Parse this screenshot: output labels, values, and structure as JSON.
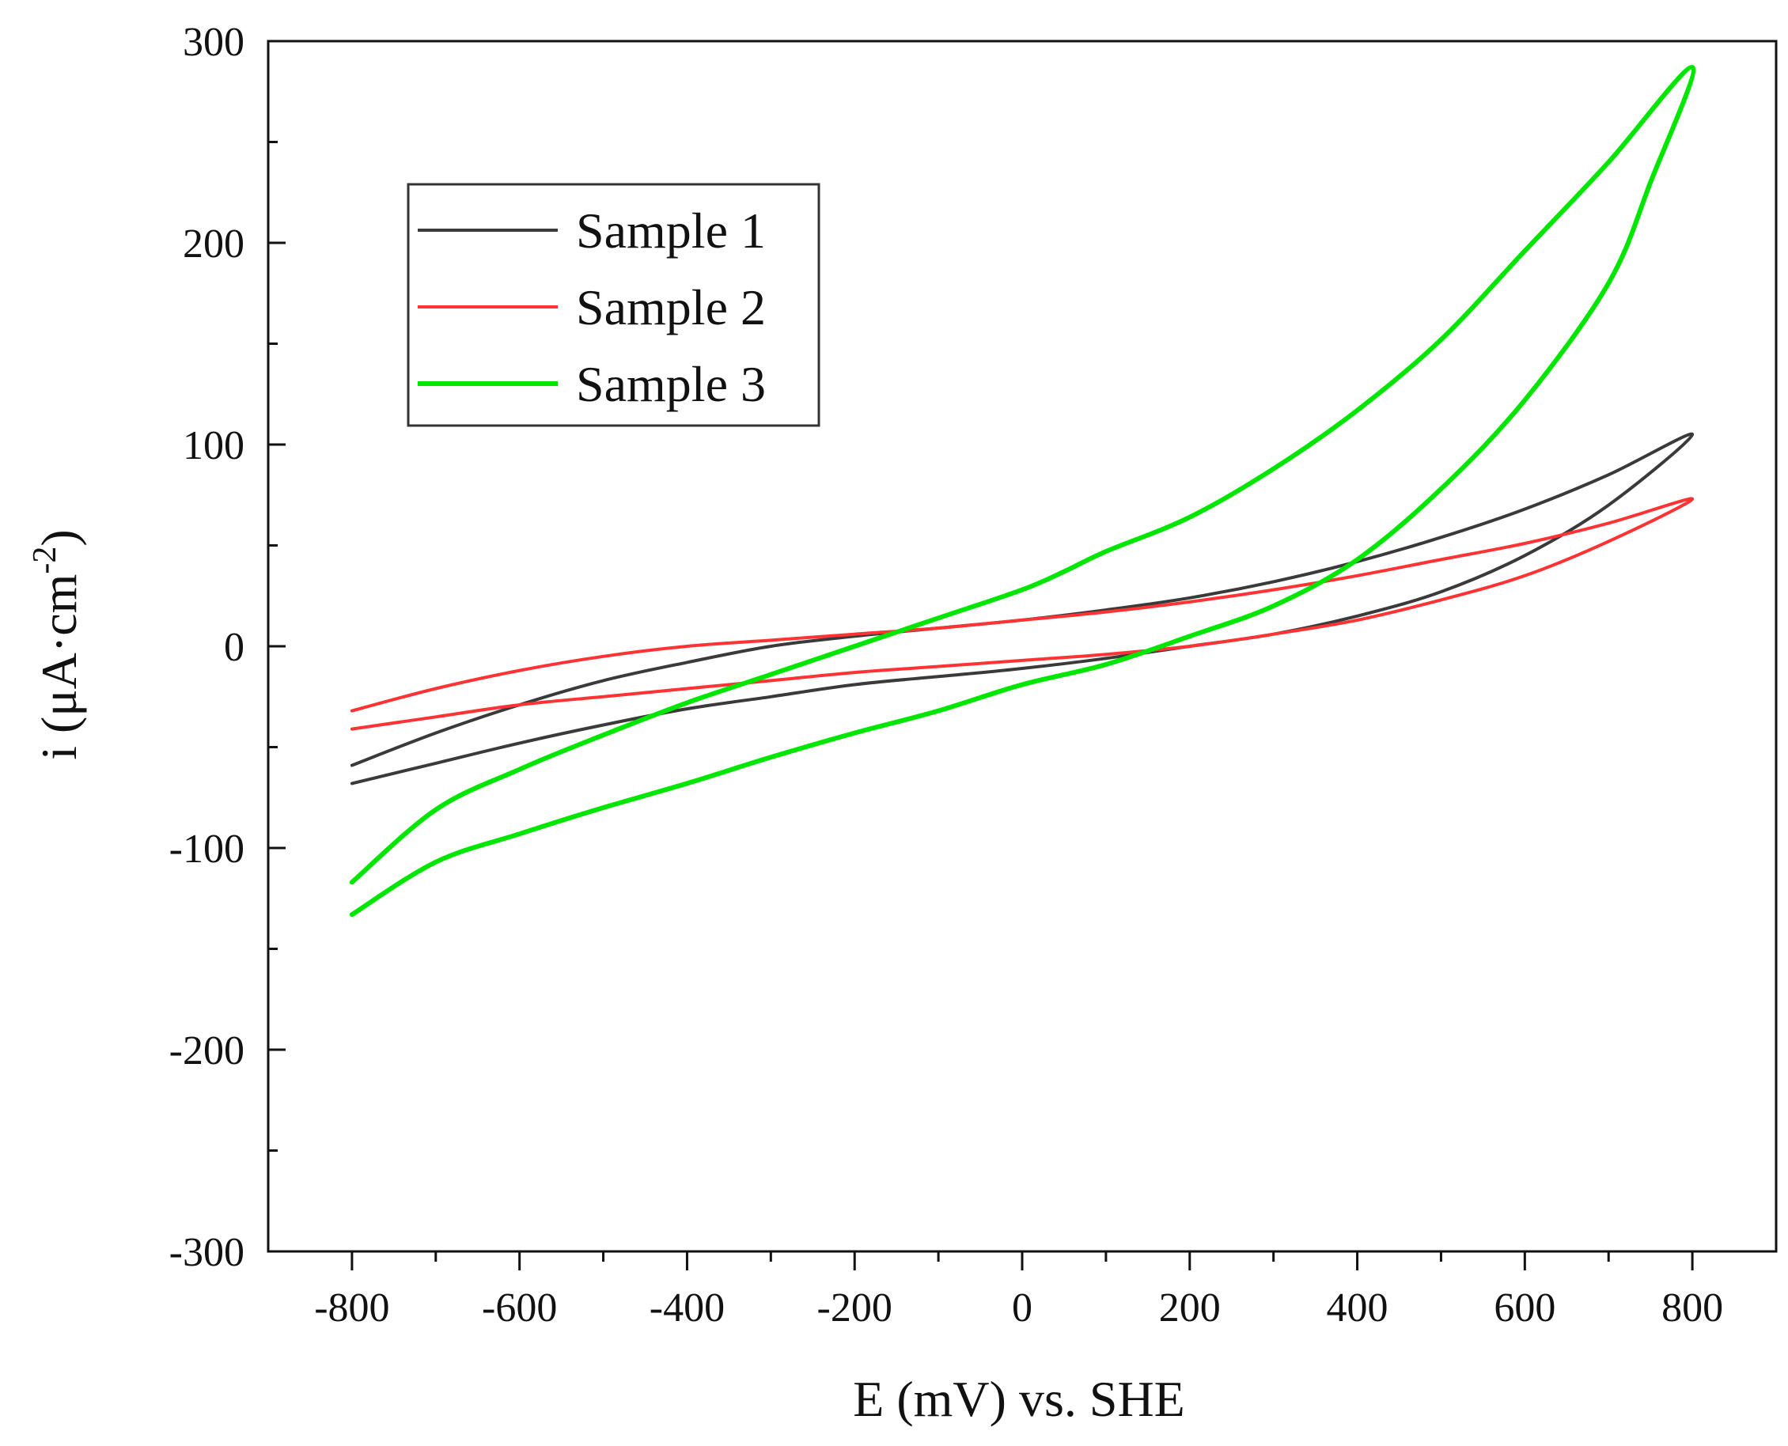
{
  "chart_data": {
    "type": "line",
    "title": "",
    "xlabel": "E (mV) vs. SHE",
    "ylabel_main": "i (μA·cm",
    "ylabel_sup": "-2",
    "ylabel_tail": ")",
    "xlim": [
      -900,
      900
    ],
    "ylim": [
      -300,
      300
    ],
    "xticks": [
      -800,
      -600,
      -400,
      -200,
      0,
      200,
      400,
      600,
      800
    ],
    "xtick_labels": [
      "-800",
      "-600",
      "-400",
      "-200",
      "0",
      "200",
      "400",
      "600",
      "800"
    ],
    "yticks": [
      -300,
      -200,
      -100,
      0,
      100,
      200,
      300
    ],
    "ytick_labels": [
      "-300",
      "-200",
      "-100",
      "0",
      "100",
      "200",
      "300"
    ],
    "legend_position": "top-left",
    "series": [
      {
        "name": "Sample 1",
        "color": "#3a3a3a",
        "x": [
          -800,
          -700,
          -600,
          -500,
          -400,
          -300,
          -200,
          -100,
          0,
          100,
          200,
          300,
          400,
          500,
          600,
          700,
          800,
          700,
          600,
          500,
          400,
          300,
          200,
          100,
          0,
          -100,
          -200,
          -300,
          -400,
          -500,
          -600,
          -700,
          -800
        ],
        "y": [
          -59,
          -43,
          -29,
          -17,
          -8,
          0,
          5,
          9,
          13,
          18,
          24,
          32,
          42,
          54,
          68,
          85,
          105,
          70,
          45,
          27,
          15,
          6,
          0,
          -6,
          -11,
          -15,
          -19,
          -25,
          -31,
          -39,
          -48,
          -58,
          -68
        ]
      },
      {
        "name": "Sample 2",
        "color": "#ff3333",
        "x": [
          -800,
          -700,
          -600,
          -500,
          -400,
          -300,
          -200,
          -100,
          0,
          100,
          200,
          300,
          400,
          500,
          600,
          700,
          800,
          700,
          600,
          500,
          400,
          300,
          200,
          100,
          0,
          -100,
          -200,
          -300,
          -400,
          -500,
          -600,
          -700,
          -800
        ],
        "y": [
          -32,
          -21,
          -12,
          -5,
          0,
          3,
          6,
          9,
          13,
          17,
          22,
          28,
          35,
          43,
          51,
          61,
          73,
          52,
          35,
          23,
          13,
          6,
          0,
          -4,
          -7,
          -10,
          -13,
          -17,
          -21,
          -25,
          -29,
          -35,
          -41
        ]
      },
      {
        "name": "Sample 3",
        "color": "#00e600",
        "x": [
          -800,
          -700,
          -600,
          -500,
          -400,
          -300,
          -200,
          -100,
          0,
          50,
          100,
          200,
          300,
          400,
          500,
          600,
          700,
          800,
          750,
          700,
          600,
          500,
          400,
          300,
          200,
          100,
          0,
          -100,
          -200,
          -300,
          -400,
          -500,
          -600,
          -700,
          -800
        ],
        "y": [
          -117,
          -81,
          -61,
          -44,
          -28,
          -14,
          0,
          14,
          28,
          37,
          47,
          64,
          88,
          117,
          152,
          196,
          240,
          287,
          230,
          180,
          122,
          78,
          43,
          20,
          5,
          -9,
          -19,
          -32,
          -43,
          -55,
          -68,
          -80,
          -93,
          -107,
          -133
        ]
      }
    ]
  }
}
